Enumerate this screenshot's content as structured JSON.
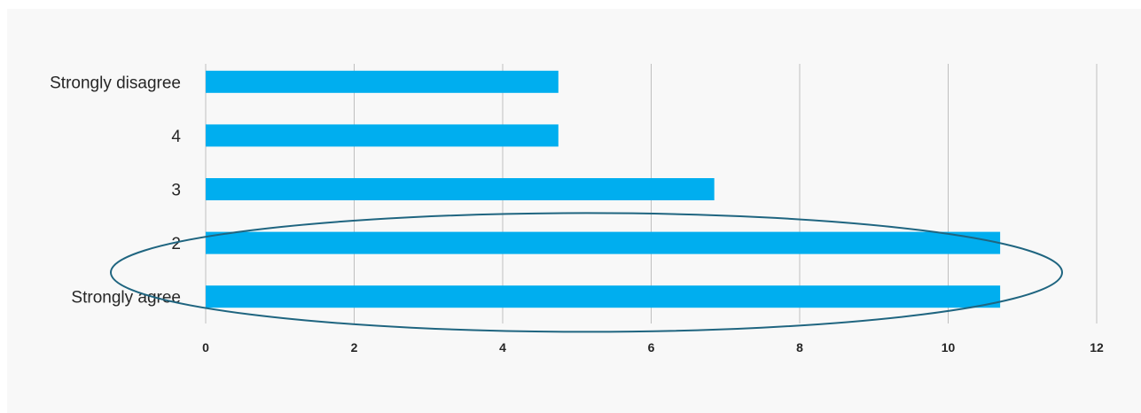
{
  "chart_data": {
    "type": "bar",
    "orientation": "horizontal",
    "categories": [
      "Strongly disagree",
      "4",
      "3",
      "2",
      "Strongly agree"
    ],
    "values": [
      4.75,
      4.75,
      6.85,
      10.7,
      10.7
    ],
    "xlim": [
      0,
      12
    ],
    "x_ticks": [
      0,
      2,
      4,
      6,
      8,
      10,
      12
    ],
    "grid": "vertical",
    "bar_color": "#00aeef",
    "gridline_color": "#bfbfbf",
    "background_color": "#f8f8f8",
    "annotation": {
      "shape": "ellipse",
      "color": "#1f6580",
      "encloses": [
        "2",
        "Strongly agree"
      ]
    }
  }
}
